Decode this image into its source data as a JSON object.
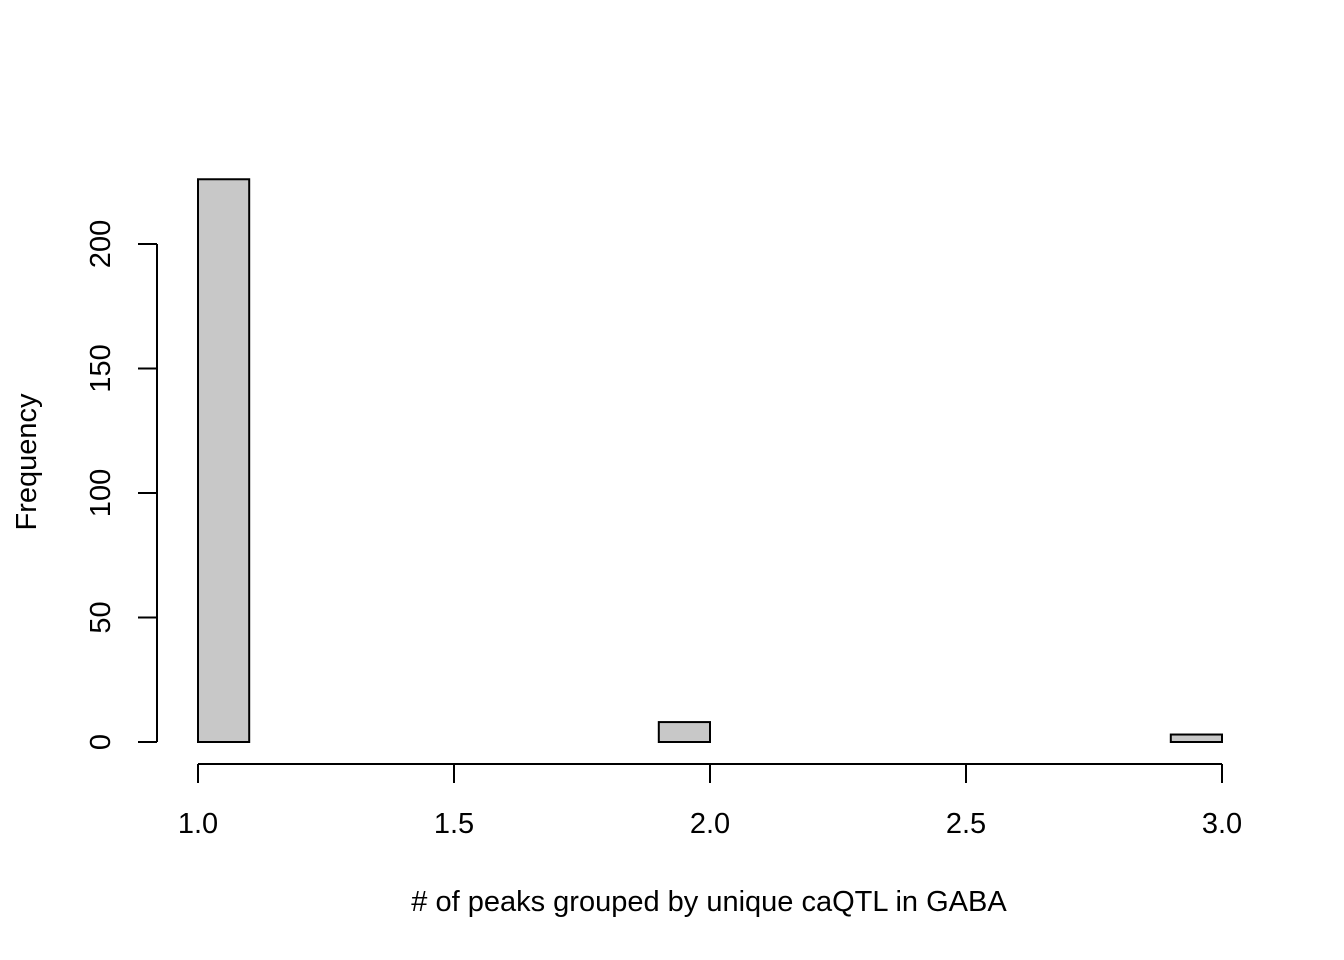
{
  "chart_data": {
    "type": "bar",
    "subtype": "histogram",
    "title": "",
    "xlabel": "# of peaks grouped by unique caQTL in GABA",
    "ylabel": "Frequency",
    "xlim": [
      1.0,
      3.0
    ],
    "ylim": [
      0,
      226
    ],
    "x_ticks": [
      1.0,
      1.5,
      2.0,
      2.5,
      3.0
    ],
    "x_tick_labels": [
      "1.0",
      "1.5",
      "2.0",
      "2.5",
      "3.0"
    ],
    "y_ticks": [
      0,
      50,
      100,
      150,
      200
    ],
    "y_tick_labels": [
      "0",
      "50",
      "100",
      "150",
      "200"
    ],
    "bin_edges": [
      1.0,
      1.1,
      1.2,
      1.3,
      1.4,
      1.5,
      1.6,
      1.7,
      1.8,
      1.9,
      2.0,
      2.1,
      2.2,
      2.3,
      2.4,
      2.5,
      2.6,
      2.7,
      2.8,
      2.9,
      3.0
    ],
    "values": [
      226,
      0,
      0,
      0,
      0,
      0,
      0,
      0,
      0,
      8,
      0,
      0,
      0,
      0,
      0,
      0,
      0,
      0,
      0,
      3
    ],
    "bar_fill": "#c8c8c8",
    "bar_stroke": "#000000",
    "grid": false,
    "legend": "none"
  }
}
